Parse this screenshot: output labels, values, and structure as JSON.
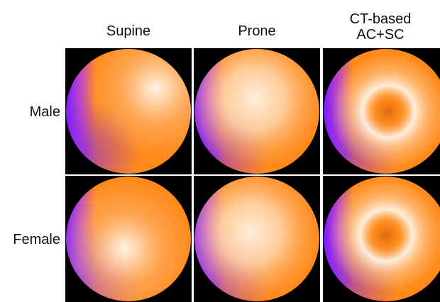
{
  "figure": {
    "columns": [
      {
        "label": "Supine"
      },
      {
        "label": "Prone"
      },
      {
        "label_line1": "CT-based",
        "label_line2": "AC+SC"
      }
    ],
    "rows": [
      {
        "label": "Male"
      },
      {
        "label": "Female"
      }
    ],
    "panels": [
      {
        "name": "male-supine",
        "row": "Male",
        "column": "Supine",
        "type": "diffuse-hotspot",
        "hot": [
          0.72,
          0.32
        ]
      },
      {
        "name": "male-prone",
        "row": "Male",
        "column": "Prone",
        "type": "diffuse",
        "hot": [
          0.48,
          0.4
        ]
      },
      {
        "name": "male-ctac",
        "row": "Male",
        "column": "CT-based AC+SC",
        "type": "ring",
        "center": [
          0.52,
          0.5
        ]
      },
      {
        "name": "female-supine",
        "row": "Female",
        "column": "Supine",
        "type": "diffuse-hotspot",
        "hot": [
          0.47,
          0.58
        ]
      },
      {
        "name": "female-prone",
        "row": "Female",
        "column": "Prone",
        "type": "diffuse",
        "hot": [
          0.45,
          0.45
        ]
      },
      {
        "name": "female-ctac",
        "row": "Female",
        "column": "CT-based AC+SC",
        "type": "ring",
        "center": [
          0.5,
          0.47
        ]
      }
    ],
    "colors": {
      "background": "#000000",
      "rim_purple": "#7a1cff",
      "mid_orange": "#ff8a1a",
      "hot_white": "#fff4e6"
    }
  }
}
